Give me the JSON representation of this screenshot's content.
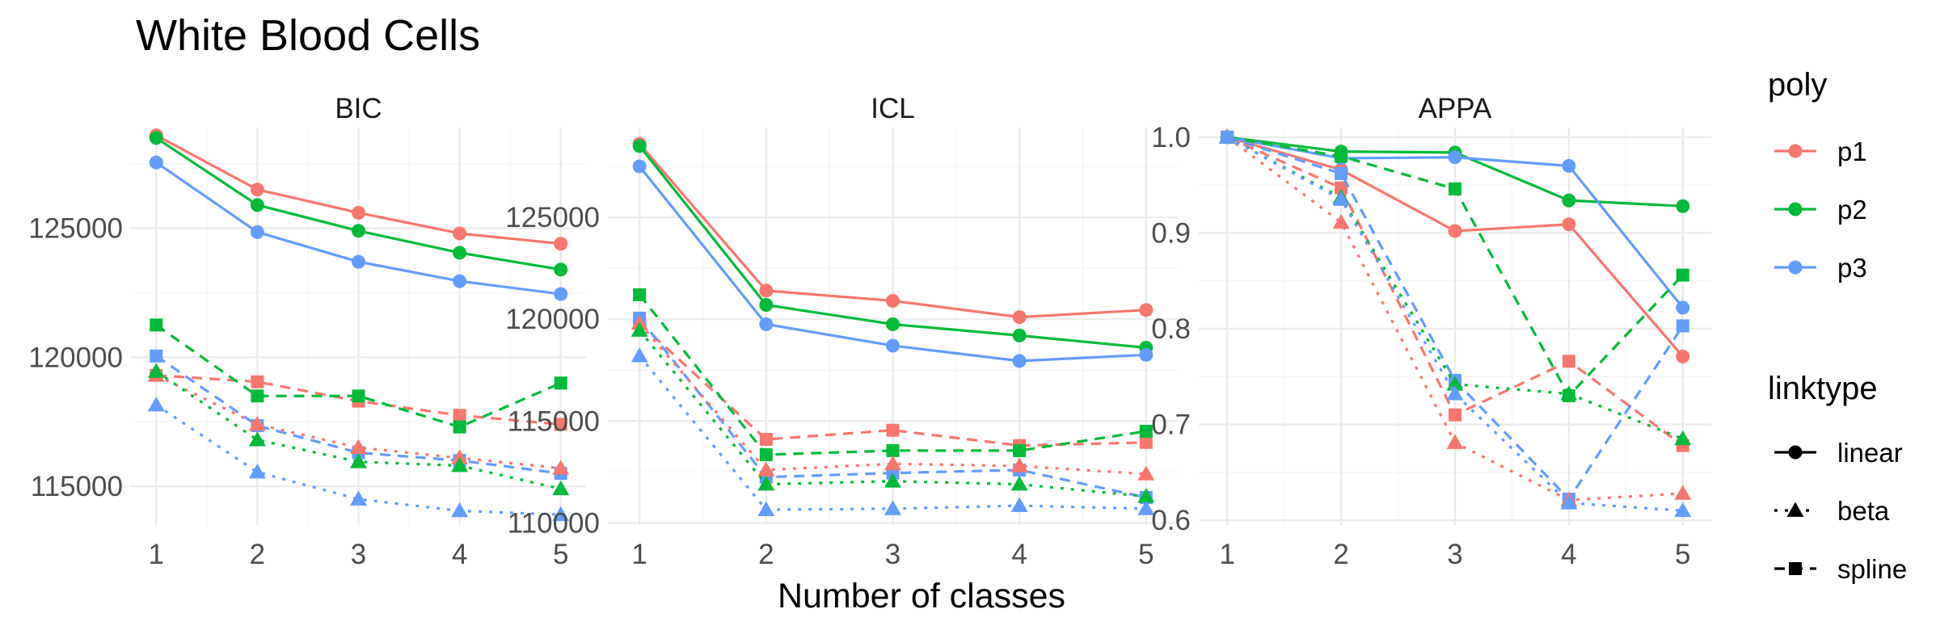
{
  "chart_data": {
    "type": "line",
    "title": "White Blood Cells",
    "xlabel": "Number of classes",
    "ylabel": "",
    "x": [
      1,
      2,
      3,
      4,
      5
    ],
    "legend_position": "right",
    "grid": true,
    "legend": {
      "poly": {
        "title": "poly",
        "entries": [
          {
            "label": "p1",
            "color": "#F8766D"
          },
          {
            "label": "p2",
            "color": "#00BA38"
          },
          {
            "label": "p3",
            "color": "#619CFF"
          }
        ]
      },
      "linktype": {
        "title": "linktype",
        "entries": [
          {
            "label": "linear",
            "dash": "solid",
            "marker": "circle"
          },
          {
            "label": "beta",
            "dash": "dotted",
            "marker": "triangle"
          },
          {
            "label": "spline",
            "dash": "dashed",
            "marker": "square"
          }
        ]
      }
    },
    "panels": [
      {
        "strip": "BIC",
        "ylim": [
          113500,
          128900
        ],
        "yticks": [
          115000,
          120000,
          125000
        ],
        "ytick_labels": [
          "115000",
          "120000",
          "125000"
        ],
        "series": [
          {
            "poly": "p1",
            "linktype": "linear",
            "values": [
              128600,
              126500,
              125600,
              124800,
              124400
            ]
          },
          {
            "poly": "p2",
            "linktype": "linear",
            "values": [
              128500,
              125900,
              124900,
              124050,
              123400
            ]
          },
          {
            "poly": "p3",
            "linktype": "linear",
            "values": [
              127550,
              124850,
              123700,
              122950,
              122450
            ]
          },
          {
            "poly": "p1",
            "linktype": "spline",
            "values": [
              119300,
              119050,
              118300,
              117750,
              117400
            ]
          },
          {
            "poly": "p2",
            "linktype": "spline",
            "values": [
              121250,
              118500,
              118500,
              117300,
              119000
            ]
          },
          {
            "poly": "p3",
            "linktype": "spline",
            "values": [
              120050,
              117350,
              116300,
              116000,
              115500
            ]
          },
          {
            "poly": "p1",
            "linktype": "beta",
            "values": [
              119300,
              117400,
              116500,
              116100,
              115700
            ]
          },
          {
            "poly": "p2",
            "linktype": "beta",
            "values": [
              119450,
              116800,
              115950,
              115800,
              114900
            ]
          },
          {
            "poly": "p3",
            "linktype": "beta",
            "values": [
              118150,
              115550,
              114500,
              114050,
              113900
            ]
          }
        ]
      },
      {
        "strip": "ICL",
        "ylim": [
          109900,
          129400
        ],
        "yticks": [
          110000,
          115000,
          120000,
          125000
        ],
        "ytick_labels": [
          "110000",
          "115000",
          "120000",
          "125000"
        ],
        "series": [
          {
            "poly": "p1",
            "linktype": "linear",
            "values": [
              128600,
              121400,
              120900,
              120100,
              120450
            ]
          },
          {
            "poly": "p2",
            "linktype": "linear",
            "values": [
              128500,
              120700,
              119750,
              119200,
              118600
            ]
          },
          {
            "poly": "p3",
            "linktype": "linear",
            "values": [
              127500,
              119750,
              118700,
              117950,
              118250
            ]
          },
          {
            "poly": "p1",
            "linktype": "spline",
            "values": [
              119800,
              114100,
              114550,
              113800,
              113950
            ]
          },
          {
            "poly": "p2",
            "linktype": "spline",
            "values": [
              121200,
              113350,
              113550,
              113550,
              114500
            ]
          },
          {
            "poly": "p3",
            "linktype": "spline",
            "values": [
              120050,
              112250,
              112450,
              112600,
              111250
            ]
          },
          {
            "poly": "p1",
            "linktype": "beta",
            "values": [
              119800,
              112600,
              112900,
              112800,
              112400
            ]
          },
          {
            "poly": "p2",
            "linktype": "beta",
            "values": [
              119450,
              111900,
              112050,
              111900,
              111300
            ]
          },
          {
            "poly": "p3",
            "linktype": "beta",
            "values": [
              118200,
              110650,
              110700,
              110850,
              110700
            ]
          }
        ]
      },
      {
        "strip": "APPA",
        "ylim": [
          0.595,
          1.01
        ],
        "yticks": [
          0.6,
          0.7,
          0.8,
          0.9,
          1.0
        ],
        "ytick_labels": [
          "0.6",
          "0.7",
          "0.8",
          "0.9",
          "1.0"
        ],
        "series": [
          {
            "poly": "p1",
            "linktype": "linear",
            "values": [
              1.0,
              0.966,
              0.902,
              0.909,
              0.771
            ]
          },
          {
            "poly": "p2",
            "linktype": "linear",
            "values": [
              1.0,
              0.985,
              0.984,
              0.934,
              0.928
            ]
          },
          {
            "poly": "p3",
            "linktype": "linear",
            "values": [
              1.0,
              0.978,
              0.979,
              0.97,
              0.822
            ]
          },
          {
            "poly": "p1",
            "linktype": "spline",
            "values": [
              1.0,
              0.947,
              0.71,
              0.766,
              0.678
            ]
          },
          {
            "poly": "p2",
            "linktype": "spline",
            "values": [
              1.0,
              0.98,
              0.946,
              0.73,
              0.856
            ]
          },
          {
            "poly": "p3",
            "linktype": "spline",
            "values": [
              1.0,
              0.962,
              0.746,
              0.622,
              0.803
            ]
          },
          {
            "poly": "p1",
            "linktype": "beta",
            "values": [
              1.0,
              0.911,
              0.681,
              0.621,
              0.628
            ]
          },
          {
            "poly": "p2",
            "linktype": "beta",
            "values": [
              1.0,
              0.937,
              0.742,
              0.732,
              0.685
            ]
          },
          {
            "poly": "p3",
            "linktype": "beta",
            "values": [
              1.0,
              0.935,
              0.732,
              0.618,
              0.61
            ]
          }
        ]
      }
    ]
  }
}
